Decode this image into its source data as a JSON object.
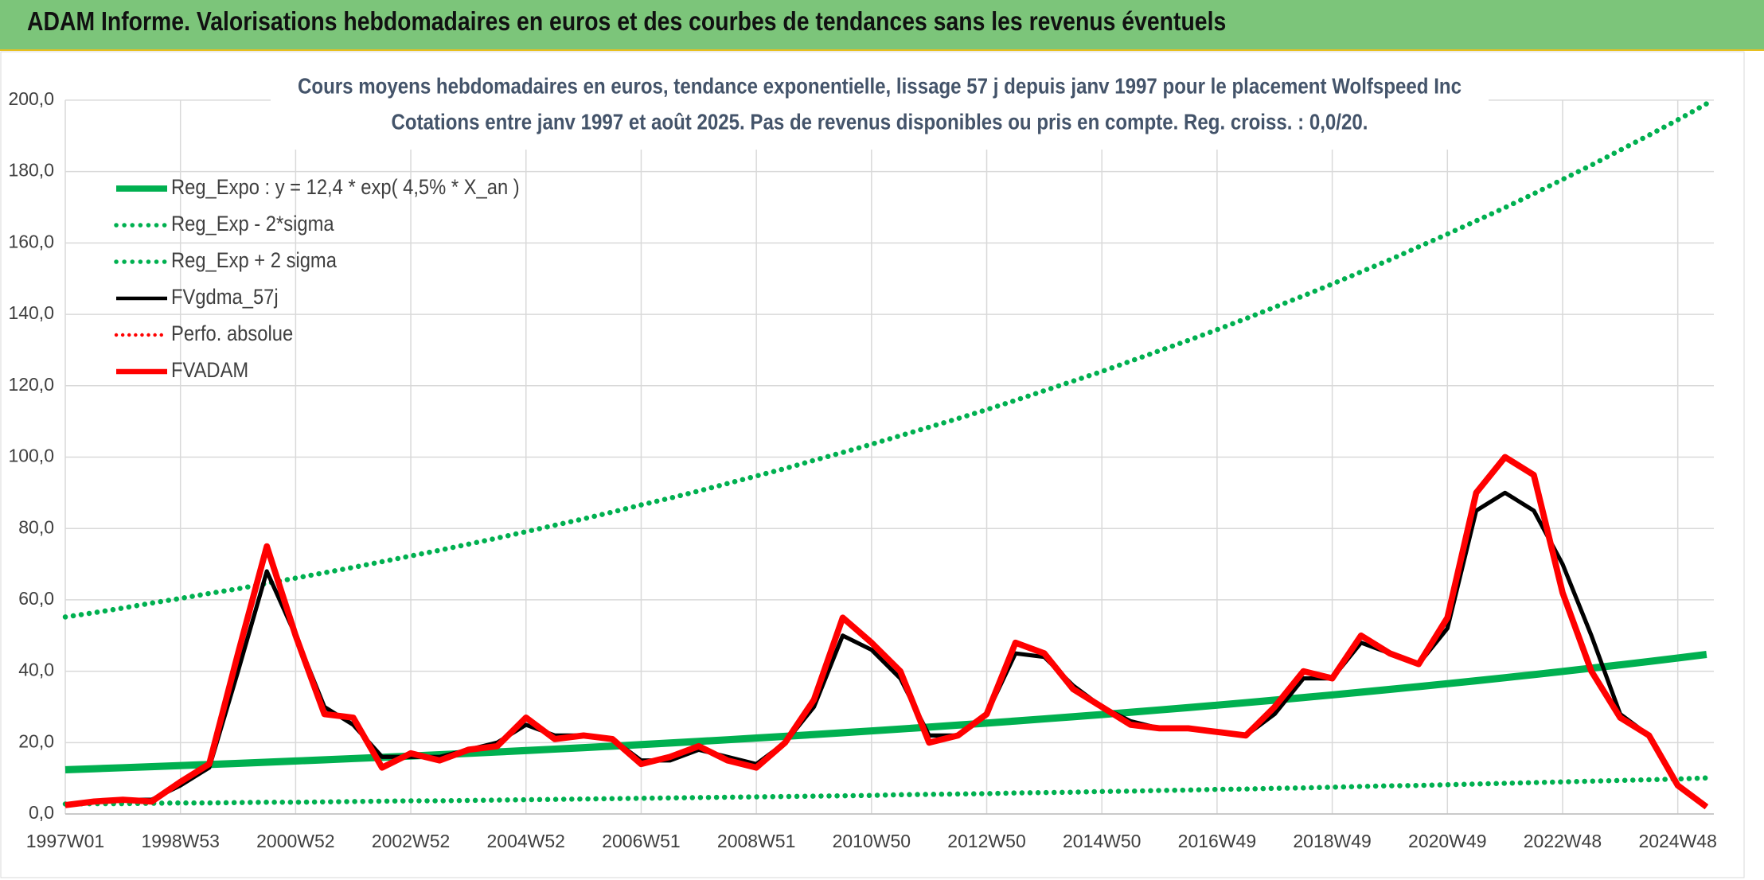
{
  "header": {
    "title": "ADAM Informe. Valorisations hebdomadaires en euros et des courbes de tendances sans les revenus éventuels"
  },
  "chart_data": {
    "type": "line",
    "title": "Cours moyens hebdomadaires en euros, tendance exponentielle, lissage 57 j depuis janv 1997 pour le placement Wolfspeed Inc",
    "subtitle": "Cotations entre janv 1997 et août 2025. Pas de revenus disponibles ou pris en compte. Reg. croiss. : 0,0/20.",
    "categories": [
      "1997W01",
      null,
      null,
      null,
      "1998W53",
      null,
      null,
      null,
      "2000W52",
      null,
      null,
      null,
      "2002W52",
      null,
      null,
      null,
      "2004W52",
      null,
      null,
      null,
      "2006W51",
      null,
      null,
      null,
      "2008W51",
      null,
      null,
      null,
      "2010W50",
      null,
      null,
      null,
      "2012W50",
      null,
      null,
      null,
      "2014W50",
      null,
      null,
      null,
      "2016W49",
      null,
      null,
      null,
      "2018W49",
      null,
      null,
      null,
      "2020W49",
      null,
      null,
      null,
      "2022W48",
      null,
      null,
      null,
      "2024W48",
      null
    ],
    "ylim": [
      0,
      200
    ],
    "yticks": [
      {
        "value": 0,
        "label": "0,0"
      },
      {
        "value": 20,
        "label": "20,0"
      },
      {
        "value": 40,
        "label": "40,0"
      },
      {
        "value": 60,
        "label": "60,0"
      },
      {
        "value": 80,
        "label": "80,0"
      },
      {
        "value": 100,
        "label": "100,0"
      },
      {
        "value": 120,
        "label": "120,0"
      },
      {
        "value": 140,
        "label": "140,0"
      },
      {
        "value": 160,
        "label": "160,0"
      },
      {
        "value": 180,
        "label": "180,0"
      },
      {
        "value": 200,
        "label": "200,0"
      }
    ],
    "grid": true,
    "legend": "upper left",
    "series": [
      {
        "name": "Reg_Expo : y = 12,4 * exp( 4,5% *  X_an )",
        "color": "#00b050",
        "style": "solid",
        "width": 7,
        "values": [
          12.4,
          12.68,
          12.97,
          13.27,
          13.57,
          13.88,
          14.19,
          14.52,
          14.85,
          15.18,
          15.53,
          15.88,
          16.24,
          16.61,
          16.99,
          17.38,
          17.77,
          18.18,
          18.59,
          19.01,
          19.45,
          19.89,
          20.34,
          20.8,
          21.28,
          21.76,
          22.26,
          22.76,
          23.28,
          23.81,
          24.35,
          24.91,
          25.47,
          26.05,
          26.65,
          27.25,
          27.87,
          28.51,
          29.16,
          29.82,
          30.5,
          31.19,
          31.9,
          32.63,
          33.37,
          34.13,
          34.91,
          35.7,
          36.51,
          37.34,
          38.19,
          39.06,
          39.95,
          40.86,
          41.79,
          42.74,
          43.71,
          44.71
        ]
      },
      {
        "name": "Reg_Exp - 2*sigma",
        "color": "#00b050",
        "style": "dotted",
        "width": 5,
        "values": [
          2.8,
          2.9,
          2.9,
          3.0,
          3.1,
          3.1,
          3.2,
          3.3,
          3.3,
          3.4,
          3.5,
          3.6,
          3.7,
          3.7,
          3.8,
          3.9,
          4.0,
          4.1,
          4.2,
          4.3,
          4.4,
          4.5,
          4.6,
          4.7,
          4.8,
          4.9,
          5.0,
          5.1,
          5.2,
          5.4,
          5.5,
          5.6,
          5.7,
          5.9,
          6.0,
          6.1,
          6.3,
          6.4,
          6.6,
          6.7,
          6.9,
          7.0,
          7.2,
          7.3,
          7.5,
          7.7,
          7.9,
          8.0,
          8.2,
          8.4,
          8.6,
          8.8,
          9.0,
          9.2,
          9.4,
          9.6,
          9.8,
          10.1
        ]
      },
      {
        "name": "Reg_Exp + 2 sigma",
        "color": "#00b050",
        "style": "dotted",
        "width": 5,
        "values": [
          55.2,
          56.4,
          57.7,
          59.1,
          60.4,
          61.8,
          63.1,
          64.6,
          66.1,
          67.6,
          69.1,
          70.7,
          72.3,
          73.9,
          75.6,
          77.3,
          79.1,
          80.9,
          82.7,
          84.6,
          86.6,
          88.5,
          90.5,
          92.6,
          94.7,
          96.8,
          99.1,
          101.3,
          103.6,
          106.0,
          108.4,
          110.8,
          113.3,
          115.9,
          118.6,
          121.3,
          124.0,
          126.9,
          129.8,
          132.7,
          135.7,
          138.8,
          142.0,
          145.2,
          148.5,
          151.9,
          155.3,
          158.9,
          162.5,
          166.2,
          169.9,
          173.8,
          177.8,
          181.8,
          186.0,
          190.2,
          194.5,
          199.0
        ]
      },
      {
        "name": "FVgdma_57j",
        "color": "#000000",
        "style": "solid",
        "width": 4,
        "values": [
          2.5,
          3.5,
          4,
          4,
          8,
          13,
          40,
          68,
          50,
          30,
          25,
          16,
          16,
          16,
          18,
          20,
          25,
          22,
          22,
          21,
          15,
          15,
          18,
          16,
          14,
          20,
          30,
          50,
          46,
          38,
          22,
          22,
          28,
          45,
          44,
          36,
          30,
          26,
          24,
          24,
          23,
          22,
          28,
          38,
          38,
          48,
          45,
          42,
          52,
          85,
          90,
          85,
          70,
          50,
          28,
          22,
          8,
          2
        ]
      },
      {
        "name": "Perfo. absolue",
        "color": "#ff0000",
        "style": "dotted",
        "width": 4
      },
      {
        "name": "FVADAM",
        "color": "#ff0000",
        "style": "solid",
        "width": 6,
        "values": [
          2.5,
          3.5,
          4,
          3.5,
          9,
          14,
          45,
          75,
          50,
          28,
          27,
          13,
          17,
          15,
          18,
          19,
          27,
          21,
          22,
          21,
          14,
          16,
          19,
          15,
          13,
          20,
          32,
          55,
          48,
          40,
          20,
          22,
          28,
          48,
          45,
          35,
          30,
          25,
          24,
          24,
          23,
          22,
          30,
          40,
          38,
          50,
          45,
          42,
          55,
          90,
          100,
          95,
          62,
          40,
          27,
          22,
          8,
          2
        ]
      }
    ]
  }
}
